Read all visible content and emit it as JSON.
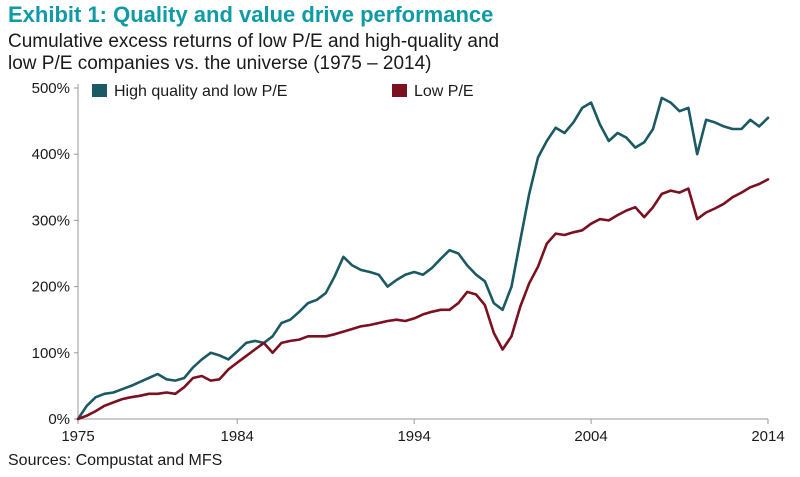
{
  "chart_data": {
    "type": "line",
    "title": "Exhibit 1: Quality and value drive performance",
    "subtitle_lines": [
      "Cumulative excess returns of low P/E and high-quality and",
      "low P/E companies vs. the universe (1975 – 2014)"
    ],
    "source": "Sources: Compustat and MFS",
    "xlabel": "",
    "ylabel": "",
    "xlim": [
      1975,
      2014
    ],
    "ylim": [
      0,
      500
    ],
    "x_ticks": [
      1975,
      1984,
      1994,
      2004,
      2014
    ],
    "x_tick_labels": [
      "1975",
      "1984",
      "1994",
      "2004",
      "2014"
    ],
    "y_ticks": [
      0,
      100,
      200,
      300,
      400,
      500
    ],
    "y_tick_labels": [
      "0%",
      "100%",
      "200%",
      "300%",
      "400%",
      "500%"
    ],
    "grid": false,
    "legend_position": "top-left",
    "series": [
      {
        "name": "High quality and low P/E",
        "color": "#1b5a63",
        "points": [
          [
            1975,
            0
          ],
          [
            1975.5,
            20
          ],
          [
            1976,
            33
          ],
          [
            1976.5,
            38
          ],
          [
            1977,
            40
          ],
          [
            1977.5,
            45
          ],
          [
            1978,
            50
          ],
          [
            1978.5,
            56
          ],
          [
            1979,
            62
          ],
          [
            1979.5,
            68
          ],
          [
            1980,
            60
          ],
          [
            1980.5,
            58
          ],
          [
            1981,
            62
          ],
          [
            1981.5,
            78
          ],
          [
            1982,
            90
          ],
          [
            1982.5,
            100
          ],
          [
            1983,
            96
          ],
          [
            1983.5,
            90
          ],
          [
            1984,
            102
          ],
          [
            1984.5,
            115
          ],
          [
            1985,
            118
          ],
          [
            1985.5,
            115
          ],
          [
            1986,
            125
          ],
          [
            1986.5,
            145
          ],
          [
            1987,
            150
          ],
          [
            1987.5,
            162
          ],
          [
            1988,
            175
          ],
          [
            1988.5,
            180
          ],
          [
            1989,
            190
          ],
          [
            1989.5,
            215
          ],
          [
            1990,
            245
          ],
          [
            1990.5,
            232
          ],
          [
            1991,
            225
          ],
          [
            1991.5,
            222
          ],
          [
            1992,
            218
          ],
          [
            1992.5,
            200
          ],
          [
            1993,
            210
          ],
          [
            1993.5,
            218
          ],
          [
            1994,
            222
          ],
          [
            1994.5,
            218
          ],
          [
            1995,
            228
          ],
          [
            1995.5,
            242
          ],
          [
            1996,
            255
          ],
          [
            1996.5,
            250
          ],
          [
            1997,
            232
          ],
          [
            1997.5,
            218
          ],
          [
            1998,
            208
          ],
          [
            1998.5,
            175
          ],
          [
            1999,
            165
          ],
          [
            1999.5,
            200
          ],
          [
            2000,
            270
          ],
          [
            2000.5,
            340
          ],
          [
            2001,
            395
          ],
          [
            2001.5,
            420
          ],
          [
            2002,
            440
          ],
          [
            2002.5,
            432
          ],
          [
            2003,
            448
          ],
          [
            2003.5,
            470
          ],
          [
            2004,
            478
          ],
          [
            2004.5,
            445
          ],
          [
            2005,
            420
          ],
          [
            2005.5,
            432
          ],
          [
            2006,
            425
          ],
          [
            2006.5,
            410
          ],
          [
            2007,
            418
          ],
          [
            2007.5,
            438
          ],
          [
            2008,
            485
          ],
          [
            2008.5,
            478
          ],
          [
            2009,
            465
          ],
          [
            2009.5,
            470
          ],
          [
            2010,
            400
          ],
          [
            2010.5,
            452
          ],
          [
            2011,
            448
          ],
          [
            2011.5,
            442
          ],
          [
            2012,
            438
          ],
          [
            2012.5,
            438
          ],
          [
            2013,
            452
          ],
          [
            2013.5,
            442
          ],
          [
            2014,
            455
          ]
        ]
      },
      {
        "name": "Low P/E",
        "color": "#7a1020",
        "points": [
          [
            1975,
            0
          ],
          [
            1975.5,
            5
          ],
          [
            1976,
            12
          ],
          [
            1976.5,
            20
          ],
          [
            1977,
            25
          ],
          [
            1977.5,
            30
          ],
          [
            1978,
            33
          ],
          [
            1978.5,
            35
          ],
          [
            1979,
            38
          ],
          [
            1979.5,
            38
          ],
          [
            1980,
            40
          ],
          [
            1980.5,
            38
          ],
          [
            1981,
            48
          ],
          [
            1981.5,
            62
          ],
          [
            1982,
            65
          ],
          [
            1982.5,
            58
          ],
          [
            1983,
            60
          ],
          [
            1983.5,
            75
          ],
          [
            1984,
            85
          ],
          [
            1984.5,
            95
          ],
          [
            1985,
            105
          ],
          [
            1985.5,
            115
          ],
          [
            1986,
            100
          ],
          [
            1986.5,
            115
          ],
          [
            1987,
            118
          ],
          [
            1987.5,
            120
          ],
          [
            1988,
            125
          ],
          [
            1988.5,
            125
          ],
          [
            1989,
            125
          ],
          [
            1989.5,
            128
          ],
          [
            1990,
            132
          ],
          [
            1990.5,
            136
          ],
          [
            1991,
            140
          ],
          [
            1991.5,
            142
          ],
          [
            1992,
            145
          ],
          [
            1992.5,
            148
          ],
          [
            1993,
            150
          ],
          [
            1993.5,
            148
          ],
          [
            1994,
            152
          ],
          [
            1994.5,
            158
          ],
          [
            1995,
            162
          ],
          [
            1995.5,
            165
          ],
          [
            1996,
            165
          ],
          [
            1996.5,
            175
          ],
          [
            1997,
            192
          ],
          [
            1997.5,
            188
          ],
          [
            1998,
            172
          ],
          [
            1998.5,
            130
          ],
          [
            1999,
            105
          ],
          [
            1999.5,
            125
          ],
          [
            2000,
            170
          ],
          [
            2000.5,
            205
          ],
          [
            2001,
            230
          ],
          [
            2001.5,
            265
          ],
          [
            2002,
            280
          ],
          [
            2002.5,
            278
          ],
          [
            2003,
            282
          ],
          [
            2003.5,
            285
          ],
          [
            2004,
            295
          ],
          [
            2004.5,
            302
          ],
          [
            2005,
            300
          ],
          [
            2005.5,
            308
          ],
          [
            2006,
            315
          ],
          [
            2006.5,
            320
          ],
          [
            2007,
            305
          ],
          [
            2007.5,
            320
          ],
          [
            2008,
            340
          ],
          [
            2008.5,
            345
          ],
          [
            2009,
            342
          ],
          [
            2009.5,
            348
          ],
          [
            2010,
            302
          ],
          [
            2010.5,
            312
          ],
          [
            2011,
            318
          ],
          [
            2011.5,
            325
          ],
          [
            2012,
            335
          ],
          [
            2012.5,
            342
          ],
          [
            2013,
            350
          ],
          [
            2013.5,
            355
          ],
          [
            2014,
            362
          ]
        ]
      }
    ]
  }
}
